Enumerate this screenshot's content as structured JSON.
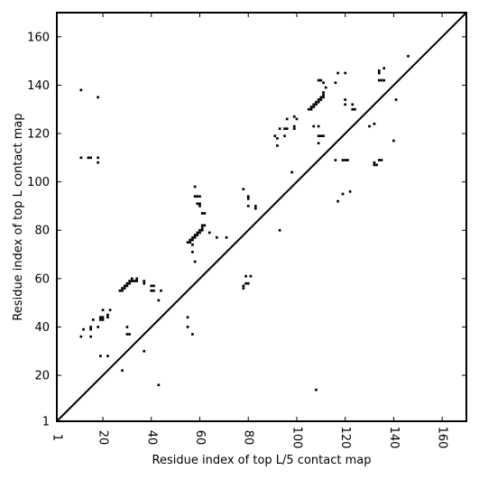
{
  "chart_data": {
    "type": "scatter",
    "title": "",
    "xlabel": "Residue index of top L/5 contact map",
    "ylabel": "Residue index of top L contact map",
    "xlim": [
      1,
      170
    ],
    "ylim": [
      1,
      170
    ],
    "xticks": [
      1,
      20,
      40,
      60,
      80,
      100,
      120,
      140,
      160
    ],
    "yticks": [
      1,
      20,
      40,
      60,
      80,
      100,
      120,
      140,
      160
    ],
    "grid": false,
    "legend": "none",
    "marker_color": "#000000",
    "diagonal": true,
    "series": [
      {
        "points": [
          [
            11,
            138
          ],
          [
            18,
            135
          ],
          [
            11,
            110
          ],
          [
            14,
            110
          ],
          [
            15,
            110
          ],
          [
            18,
            110
          ],
          [
            18,
            108
          ],
          [
            11,
            36
          ],
          [
            12,
            39
          ],
          [
            15,
            36
          ],
          [
            15,
            39
          ],
          [
            15,
            40
          ],
          [
            16,
            43
          ],
          [
            19,
            43
          ],
          [
            20,
            43
          ],
          [
            20,
            44
          ],
          [
            19,
            44
          ],
          [
            22,
            44
          ],
          [
            22,
            45
          ],
          [
            20,
            47
          ],
          [
            23,
            47
          ],
          [
            18,
            40
          ],
          [
            19,
            28
          ],
          [
            22,
            28
          ],
          [
            28,
            22
          ],
          [
            27,
            55
          ],
          [
            28,
            55
          ],
          [
            28,
            56
          ],
          [
            29,
            56
          ],
          [
            29,
            57
          ],
          [
            30,
            57
          ],
          [
            30,
            58
          ],
          [
            31,
            58
          ],
          [
            31,
            59
          ],
          [
            32,
            59
          ],
          [
            32,
            60
          ],
          [
            33,
            59
          ],
          [
            34,
            60
          ],
          [
            34,
            59
          ],
          [
            37,
            59
          ],
          [
            37,
            58
          ],
          [
            40,
            57
          ],
          [
            41,
            57
          ],
          [
            40,
            55
          ],
          [
            41,
            55
          ],
          [
            44,
            55
          ],
          [
            43,
            51
          ],
          [
            30,
            40
          ],
          [
            30,
            37
          ],
          [
            31,
            37
          ],
          [
            37,
            30
          ],
          [
            43,
            16
          ],
          [
            55,
            44
          ],
          [
            55,
            40
          ],
          [
            57,
            37
          ],
          [
            55,
            75
          ],
          [
            56,
            75
          ],
          [
            56,
            76
          ],
          [
            57,
            76
          ],
          [
            57,
            77
          ],
          [
            58,
            77
          ],
          [
            58,
            78
          ],
          [
            59,
            78
          ],
          [
            59,
            79
          ],
          [
            60,
            79
          ],
          [
            60,
            80
          ],
          [
            61,
            80
          ],
          [
            61,
            81
          ],
          [
            61,
            82
          ],
          [
            62,
            82
          ],
          [
            62,
            87
          ],
          [
            64,
            79
          ],
          [
            67,
            77
          ],
          [
            71,
            77
          ],
          [
            57,
            74
          ],
          [
            57,
            71
          ],
          [
            58,
            67
          ],
          [
            58,
            98
          ],
          [
            58,
            94
          ],
          [
            59,
            94
          ],
          [
            60,
            94
          ],
          [
            59,
            91
          ],
          [
            60,
            91
          ],
          [
            60,
            90
          ],
          [
            61,
            87
          ],
          [
            78,
            56
          ],
          [
            78,
            57
          ],
          [
            79,
            58
          ],
          [
            80,
            58
          ],
          [
            79,
            61
          ],
          [
            81,
            61
          ],
          [
            80,
            90
          ],
          [
            80,
            94
          ],
          [
            80,
            93
          ],
          [
            83,
            89
          ],
          [
            83,
            90
          ],
          [
            78,
            97
          ],
          [
            93,
            80
          ],
          [
            91,
            119
          ],
          [
            92,
            118
          ],
          [
            92,
            115
          ],
          [
            93,
            122
          ],
          [
            95,
            119
          ],
          [
            95,
            122
          ],
          [
            96,
            122
          ],
          [
            96,
            126
          ],
          [
            98,
            104
          ],
          [
            99,
            122
          ],
          [
            99,
            123
          ],
          [
            100,
            126
          ],
          [
            99,
            127
          ],
          [
            108,
            14
          ],
          [
            105,
            130
          ],
          [
            106,
            130
          ],
          [
            106,
            131
          ],
          [
            107,
            131
          ],
          [
            107,
            132
          ],
          [
            108,
            132
          ],
          [
            108,
            133
          ],
          [
            109,
            133
          ],
          [
            109,
            134
          ],
          [
            110,
            134
          ],
          [
            110,
            135
          ],
          [
            111,
            135
          ],
          [
            111,
            136
          ],
          [
            111,
            137
          ],
          [
            112,
            139
          ],
          [
            107,
            123
          ],
          [
            109,
            123
          ],
          [
            109,
            119
          ],
          [
            109,
            116
          ],
          [
            110,
            119
          ],
          [
            111,
            119
          ],
          [
            109,
            142
          ],
          [
            110,
            142
          ],
          [
            111,
            141
          ],
          [
            116,
            141
          ],
          [
            117,
            145
          ],
          [
            120,
            145
          ],
          [
            120,
            134
          ],
          [
            120,
            132
          ],
          [
            123,
            132
          ],
          [
            123,
            130
          ],
          [
            124,
            130
          ],
          [
            116,
            109
          ],
          [
            119,
            109
          ],
          [
            120,
            109
          ],
          [
            119,
            95
          ],
          [
            122,
            96
          ],
          [
            117,
            92
          ],
          [
            121,
            109
          ],
          [
            130,
            123
          ],
          [
            132,
            124
          ],
          [
            132,
            108
          ],
          [
            132,
            107
          ],
          [
            133,
            107
          ],
          [
            134,
            109
          ],
          [
            135,
            109
          ],
          [
            134,
            142
          ],
          [
            135,
            142
          ],
          [
            136,
            142
          ],
          [
            134,
            145
          ],
          [
            134,
            146
          ],
          [
            136,
            147
          ],
          [
            140,
            117
          ],
          [
            141,
            134
          ],
          [
            146,
            152
          ]
        ]
      }
    ]
  }
}
